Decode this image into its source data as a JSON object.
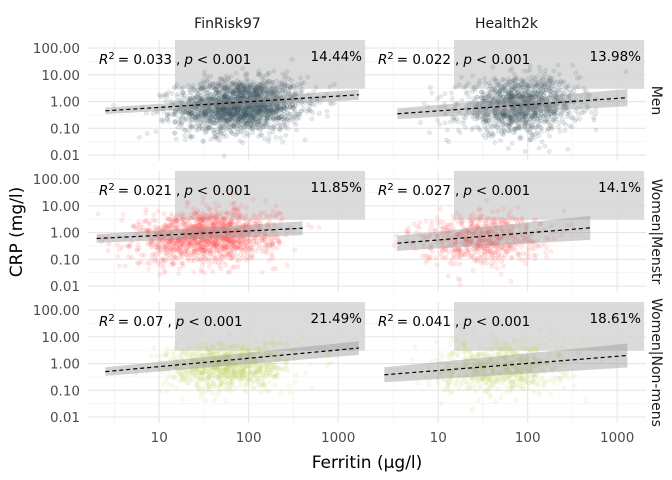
{
  "chart_data": {
    "type": "scatter",
    "x_label": "Ferritin (µg/l)",
    "y_label": "CRP (mg/l)",
    "x_scale": "log10",
    "y_scale": "log10",
    "xlim": [
      1.6,
      2100
    ],
    "ylim": [
      0.006,
      200
    ],
    "x_ticks": [
      {
        "value": 10,
        "label": "10"
      },
      {
        "value": 100,
        "label": "100"
      },
      {
        "value": 1000,
        "label": "1000"
      }
    ],
    "y_ticks": [
      {
        "value": 0.01,
        "label": "0.01"
      },
      {
        "value": 0.1,
        "label": "0.10"
      },
      {
        "value": 1,
        "label": "1.00"
      },
      {
        "value": 10,
        "label": "10.00"
      },
      {
        "value": 100,
        "label": "100.00"
      }
    ],
    "shaded_region": {
      "x_from": 15,
      "x_to": 2000,
      "y_from": 3,
      "y_to": 200,
      "color": "#d9d9d9"
    },
    "columns": [
      "FinRisk97",
      "Health2k"
    ],
    "rows": [
      "Men",
      "Women|Menstr",
      "Women|Non-mens"
    ],
    "row_colors": [
      "#455a64",
      "#ff5a5a",
      "#c6d468"
    ],
    "panels": [
      {
        "row": 0,
        "col": 0,
        "r2_text": "= 0.033",
        "p_text": "< 0.001",
        "pct_label": "14.44%",
        "point_count": 2200,
        "x_center": 80,
        "x_spread": 0.35,
        "y_center": 0.7,
        "y_spread": 0.48,
        "fit": {
          "x_start": 2.5,
          "x_end": 1700,
          "y_start": 0.45,
          "y_end": 1.8,
          "band_half": 0.03
        }
      },
      {
        "row": 0,
        "col": 1,
        "r2_text": "= 0.022",
        "p_text": "< 0.001",
        "pct_label": "13.98%",
        "point_count": 1300,
        "x_center": 80,
        "x_spread": 0.33,
        "y_center": 0.7,
        "y_spread": 0.5,
        "fit": {
          "x_start": 3.5,
          "x_end": 1300,
          "y_start": 0.35,
          "y_end": 1.4,
          "band_half": 0.05
        }
      },
      {
        "row": 1,
        "col": 0,
        "r2_text": "= 0.021",
        "p_text": "< 0.001",
        "pct_label": "11.85%",
        "point_count": 1400,
        "x_center": 35,
        "x_spread": 0.38,
        "y_center": 0.7,
        "y_spread": 0.48,
        "fit": {
          "x_start": 2,
          "x_end": 400,
          "y_start": 0.6,
          "y_end": 1.45,
          "band_half": 0.04
        }
      },
      {
        "row": 1,
        "col": 1,
        "r2_text": "= 0.027",
        "p_text": "< 0.001",
        "pct_label": "14.1%",
        "point_count": 650,
        "x_center": 30,
        "x_spread": 0.34,
        "y_center": 0.6,
        "y_spread": 0.48,
        "fit": {
          "x_start": 3.5,
          "x_end": 500,
          "y_start": 0.4,
          "y_end": 1.5,
          "band_half": 0.07
        }
      },
      {
        "row": 2,
        "col": 0,
        "r2_text": "= 0.07",
        "p_text": "< 0.001",
        "pct_label": "21.49%",
        "point_count": 900,
        "x_center": 60,
        "x_spread": 0.35,
        "y_center": 0.8,
        "y_spread": 0.45,
        "fit": {
          "x_start": 2.5,
          "x_end": 1700,
          "y_start": 0.5,
          "y_end": 3.8,
          "band_half": 0.04
        }
      },
      {
        "row": 2,
        "col": 1,
        "r2_text": "= 0.041",
        "p_text": "< 0.001",
        "pct_label": "18.61%",
        "point_count": 650,
        "x_center": 50,
        "x_spread": 0.35,
        "y_center": 0.7,
        "y_spread": 0.48,
        "fit": {
          "x_start": 2.5,
          "x_end": 1300,
          "y_start": 0.38,
          "y_end": 2.0,
          "band_half": 0.07
        }
      }
    ]
  }
}
